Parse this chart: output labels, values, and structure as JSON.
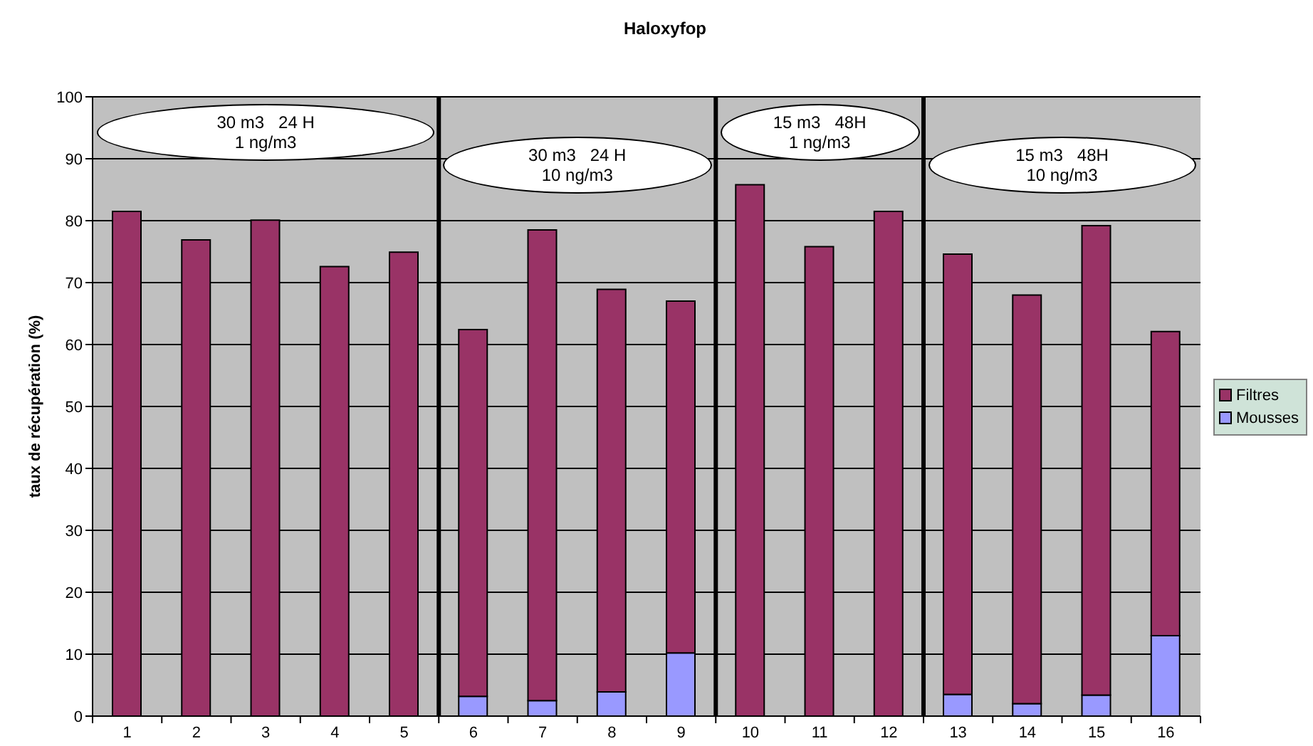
{
  "chart_data": {
    "type": "bar",
    "title": "Haloxyfop",
    "ylabel": "taux de récupération (%)",
    "x": [
      1,
      2,
      3,
      4,
      5,
      6,
      7,
      8,
      9,
      10,
      11,
      12,
      13,
      14,
      15,
      16
    ],
    "xlim": [
      0.5,
      16.5
    ],
    "xticks": [
      1,
      2,
      3,
      4,
      5,
      6,
      7,
      8,
      9,
      10,
      11,
      12,
      13,
      14,
      15,
      16
    ],
    "ylim": [
      0,
      100
    ],
    "yticks": [
      0,
      10,
      20,
      30,
      40,
      50,
      60,
      70,
      80,
      90,
      100
    ],
    "stacked": true,
    "grid": "y",
    "legend": "right",
    "series": [
      {
        "name": "Mousses",
        "color": "#9999ff",
        "values": [
          null,
          null,
          null,
          null,
          null,
          3.2,
          2.5,
          3.9,
          10.2,
          null,
          null,
          null,
          3.5,
          2.0,
          3.4,
          13.0
        ]
      },
      {
        "name": "Filtres",
        "color": "#993366",
        "values": [
          81.5,
          76.9,
          80.1,
          72.6,
          74.9,
          59.2,
          76.0,
          65.0,
          56.8,
          85.8,
          75.8,
          81.5,
          71.1,
          66.0,
          75.8,
          49.1
        ]
      }
    ],
    "ref_lines": [
      {
        "axis": "x",
        "value": 5.5,
        "color": "#000000"
      },
      {
        "axis": "x",
        "value": 9.5,
        "color": "#000000"
      },
      {
        "axis": "x",
        "value": 12.5,
        "color": "#000000"
      }
    ],
    "annotations": [
      "30 m3   24 H\n1 ng/m3",
      "30 m3   24 H\n10 ng/m3",
      "15 m3   48H\n1 ng/m3",
      "15 m3   48H\n10 ng/m3"
    ]
  }
}
